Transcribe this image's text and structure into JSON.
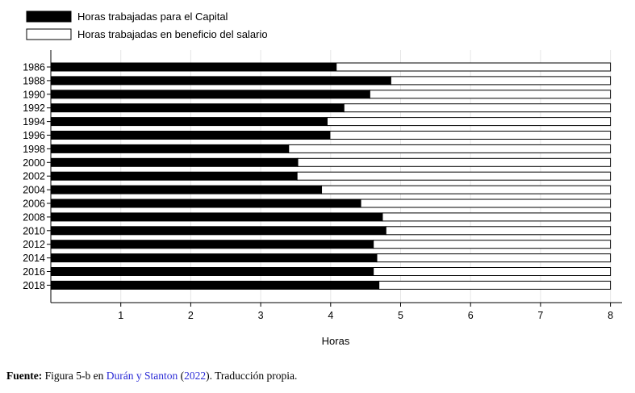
{
  "chart_data": {
    "type": "bar",
    "orientation": "horizontal",
    "stacked": true,
    "categories": [
      "1986",
      "1988",
      "1990",
      "1992",
      "1994",
      "1996",
      "1998",
      "2000",
      "2002",
      "2004",
      "2006",
      "2008",
      "2010",
      "2012",
      "2014",
      "2016",
      "2018"
    ],
    "series": [
      {
        "name": "Horas trabajadas para el Capital",
        "color": "#000000",
        "values": [
          4.08,
          4.86,
          4.56,
          4.19,
          3.95,
          3.99,
          3.4,
          3.53,
          3.52,
          3.87,
          4.43,
          4.74,
          4.79,
          4.61,
          4.66,
          4.61,
          4.69
        ]
      },
      {
        "name": "Horas trabajadas en beneficio del salario",
        "color": "#ffffff",
        "values": [
          3.92,
          3.14,
          3.44,
          3.81,
          4.05,
          4.01,
          4.6,
          4.47,
          4.48,
          4.13,
          3.57,
          3.26,
          3.21,
          3.39,
          3.34,
          3.39,
          3.31
        ]
      }
    ],
    "xlabel": "Horas",
    "ylabel": "",
    "xlim": [
      0,
      8
    ],
    "xticks": [
      1,
      2,
      3,
      4,
      5,
      6,
      7,
      8
    ],
    "grid": true,
    "legend_position": "top-left"
  },
  "footer": {
    "label": "Fuente:",
    "text_before": " Figura 5-b en ",
    "authors": "Durán y Stanton",
    "year_open": " (",
    "year": "2022",
    "text_after": "). Traducción propia."
  }
}
